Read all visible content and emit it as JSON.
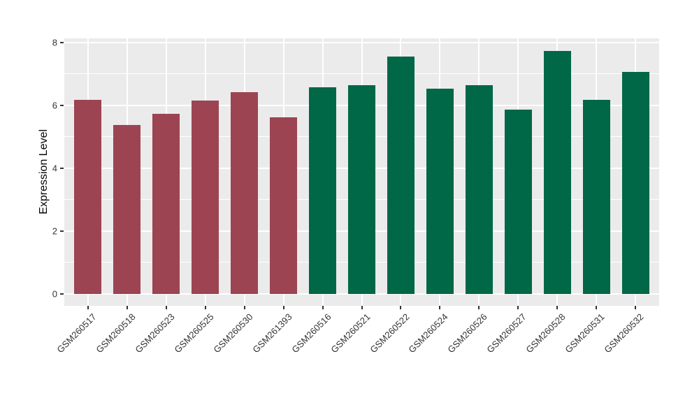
{
  "chart_data": {
    "type": "bar",
    "title": "",
    "xlabel": "",
    "ylabel": "Expression Level",
    "ylim": [
      0,
      8
    ],
    "yticks": [
      0,
      2,
      4,
      6,
      8
    ],
    "yticks_minor": [
      1,
      3,
      5,
      7
    ],
    "grid": true,
    "legend": "none",
    "panel_bg": "#EBEBEB",
    "grid_color": "#FFFFFF",
    "tick_color": "#333333",
    "group_colors": {
      "red": "#9C4452",
      "green": "#006747"
    },
    "categories": [
      "GSM260517",
      "GSM260518",
      "GSM260523",
      "GSM260525",
      "GSM260530",
      "GSM261393",
      "GSM260516",
      "GSM260521",
      "GSM260522",
      "GSM260524",
      "GSM260526",
      "GSM260527",
      "GSM260528",
      "GSM260531",
      "GSM260532"
    ],
    "bars": [
      {
        "label": "GSM260517",
        "value": 6.17,
        "group": "red"
      },
      {
        "label": "GSM260518",
        "value": 5.37,
        "group": "red"
      },
      {
        "label": "GSM260523",
        "value": 5.73,
        "group": "red"
      },
      {
        "label": "GSM260525",
        "value": 6.15,
        "group": "red"
      },
      {
        "label": "GSM260530",
        "value": 6.42,
        "group": "red"
      },
      {
        "label": "GSM261393",
        "value": 5.62,
        "group": "red"
      },
      {
        "label": "GSM260516",
        "value": 6.57,
        "group": "green"
      },
      {
        "label": "GSM260521",
        "value": 6.64,
        "group": "green"
      },
      {
        "label": "GSM260522",
        "value": 7.55,
        "group": "green"
      },
      {
        "label": "GSM260524",
        "value": 6.53,
        "group": "green"
      },
      {
        "label": "GSM260526",
        "value": 6.64,
        "group": "green"
      },
      {
        "label": "GSM260527",
        "value": 5.86,
        "group": "green"
      },
      {
        "label": "GSM260528",
        "value": 7.73,
        "group": "green"
      },
      {
        "label": "GSM260531",
        "value": 6.16,
        "group": "green"
      },
      {
        "label": "GSM260532",
        "value": 7.06,
        "group": "green"
      }
    ]
  }
}
